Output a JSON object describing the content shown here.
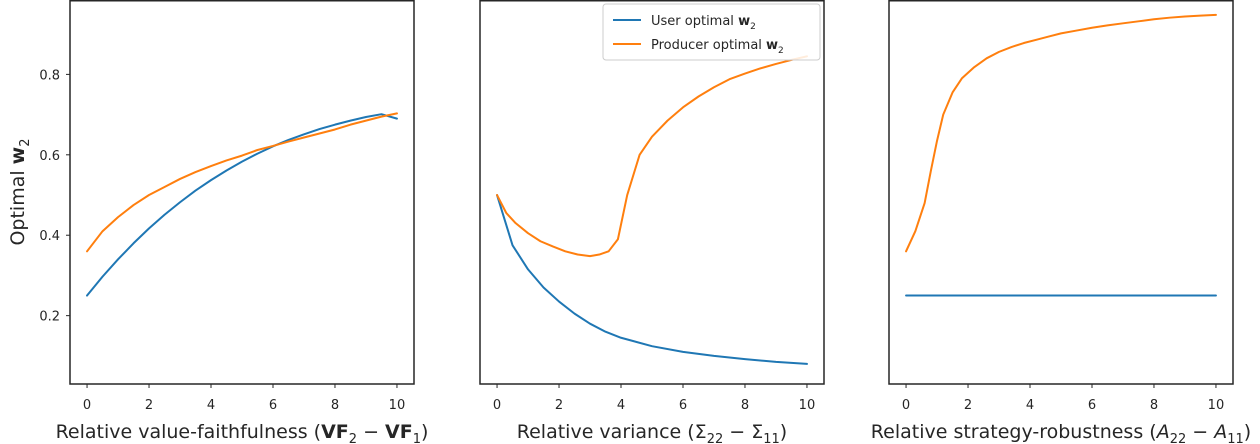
{
  "chart_data": [
    {
      "type": "line",
      "title": "",
      "xlabel": "Relative value-faithfulness (VF₂ − VF₁)",
      "xlabel_parts": [
        {
          "t": "Relative value-faithfulness (",
          "bold": false
        },
        {
          "t": "VF",
          "bold": true
        },
        {
          "t": "2",
          "sub": true
        },
        {
          "t": " − ",
          "bold": false
        },
        {
          "t": "VF",
          "bold": true
        },
        {
          "t": "1",
          "sub": true
        },
        {
          "t": ")",
          "bold": false
        }
      ],
      "ylabel": "Optimal w₂",
      "ylabel_parts": [
        {
          "t": "Optimal ",
          "bold": false
        },
        {
          "t": "w",
          "bold": true
        },
        {
          "t": "2",
          "sub": true
        }
      ],
      "xlim": [
        -0.55,
        10.55
      ],
      "ylim": [
        0.03,
        0.985
      ],
      "xticks": [
        0,
        2,
        4,
        6,
        8,
        10
      ],
      "yticks": [
        0.2,
        0.4,
        0.6,
        0.8
      ],
      "show_yticks": true,
      "grid": false,
      "series": [
        {
          "name": "User optimal w₂",
          "color": "#1f77b4",
          "x": [
            0,
            0.5,
            1,
            1.5,
            2,
            2.5,
            3,
            3.5,
            4,
            4.5,
            5,
            5.5,
            6,
            6.5,
            7,
            7.5,
            8,
            8.5,
            9,
            9.5,
            10
          ],
          "y": [
            0.25,
            0.297,
            0.34,
            0.38,
            0.417,
            0.451,
            0.482,
            0.511,
            0.537,
            0.561,
            0.583,
            0.603,
            0.621,
            0.637,
            0.651,
            0.664,
            0.675,
            0.685,
            0.694,
            0.701,
            0.69
          ]
        },
        {
          "name": "Producer optimal w₂",
          "color": "#ff7f0e",
          "x": [
            0,
            0.5,
            1,
            1.5,
            2,
            2.5,
            3,
            3.5,
            4,
            4.5,
            5,
            5.5,
            6,
            6.5,
            7,
            7.5,
            8,
            8.5,
            9,
            9.5,
            10
          ],
          "y": [
            0.36,
            0.41,
            0.445,
            0.475,
            0.5,
            0.52,
            0.54,
            0.557,
            0.572,
            0.586,
            0.598,
            0.612,
            0.622,
            0.633,
            0.643,
            0.653,
            0.663,
            0.675,
            0.685,
            0.695,
            0.703
          ]
        }
      ]
    },
    {
      "type": "line",
      "title": "",
      "xlabel": "Relative variance (Σ₂₂ − Σ₁₁)",
      "xlabel_parts": [
        {
          "t": "Relative variance (Σ",
          "bold": false
        },
        {
          "t": "22",
          "sub": true
        },
        {
          "t": " − Σ",
          "bold": false
        },
        {
          "t": "11",
          "sub": true
        },
        {
          "t": ")",
          "bold": false
        }
      ],
      "ylabel": "",
      "xlim": [
        -0.55,
        10.55
      ],
      "ylim": [
        0.03,
        0.985
      ],
      "xticks": [
        0,
        2,
        4,
        6,
        8,
        10
      ],
      "yticks": [],
      "show_yticks": false,
      "grid": false,
      "legend": {
        "position": "top-right",
        "entries": [
          {
            "color": "#1f77b4",
            "parts": [
              {
                "t": "User optimal ",
                "bold": false
              },
              {
                "t": "w",
                "bold": true
              },
              {
                "t": "2",
                "sub": true
              }
            ]
          },
          {
            "color": "#ff7f0e",
            "parts": [
              {
                "t": "Producer optimal ",
                "bold": false
              },
              {
                "t": "w",
                "bold": true
              },
              {
                "t": "2",
                "sub": true
              }
            ]
          }
        ]
      },
      "series": [
        {
          "name": "User optimal w₂",
          "color": "#1f77b4",
          "x": [
            0,
            0.5,
            1,
            1.5,
            2,
            2.5,
            3,
            3.5,
            4,
            5,
            6,
            7,
            8,
            9,
            10
          ],
          "y": [
            0.5,
            0.375,
            0.315,
            0.27,
            0.235,
            0.205,
            0.18,
            0.16,
            0.145,
            0.124,
            0.11,
            0.1,
            0.092,
            0.085,
            0.08
          ]
        },
        {
          "name": "Producer optimal w₂",
          "color": "#ff7f0e",
          "x": [
            0,
            0.3,
            0.6,
            1,
            1.4,
            1.8,
            2.2,
            2.6,
            3,
            3.3,
            3.6,
            3.9,
            4.2,
            4.6,
            5,
            5.5,
            6,
            6.5,
            7,
            7.5,
            8,
            8.5,
            9,
            9.5,
            10
          ],
          "y": [
            0.5,
            0.455,
            0.43,
            0.405,
            0.385,
            0.372,
            0.36,
            0.352,
            0.348,
            0.352,
            0.36,
            0.39,
            0.5,
            0.6,
            0.645,
            0.685,
            0.718,
            0.745,
            0.768,
            0.788,
            0.802,
            0.815,
            0.826,
            0.836,
            0.845
          ]
        }
      ]
    },
    {
      "type": "line",
      "title": "",
      "xlabel": "Relative strategy-robustness (A₂₂ − A₁₁)",
      "xlabel_parts": [
        {
          "t": "Relative strategy-robustness (",
          "bold": false
        },
        {
          "t": "A",
          "italic": true
        },
        {
          "t": "22",
          "sub": true
        },
        {
          "t": " − ",
          "bold": false
        },
        {
          "t": "A",
          "italic": true
        },
        {
          "t": "11",
          "sub": true
        },
        {
          "t": ")",
          "bold": false
        }
      ],
      "ylabel": "",
      "xlim": [
        -0.55,
        10.55
      ],
      "ylim": [
        0.03,
        0.985
      ],
      "xticks": [
        0,
        2,
        4,
        6,
        8,
        10
      ],
      "yticks": [],
      "show_yticks": false,
      "grid": false,
      "series": [
        {
          "name": "User optimal w₂",
          "color": "#1f77b4",
          "x": [
            0,
            10
          ],
          "y": [
            0.25,
            0.25
          ]
        },
        {
          "name": "Producer optimal w₂",
          "color": "#ff7f0e",
          "x": [
            0,
            0.3,
            0.6,
            0.8,
            1,
            1.2,
            1.5,
            1.8,
            2.2,
            2.6,
            3,
            3.4,
            3.8,
            4.2,
            4.6,
            5,
            5.5,
            6,
            6.5,
            7,
            7.5,
            8,
            8.5,
            9,
            9.5,
            10
          ],
          "y": [
            0.36,
            0.41,
            0.48,
            0.56,
            0.635,
            0.7,
            0.755,
            0.79,
            0.818,
            0.84,
            0.856,
            0.868,
            0.878,
            0.886,
            0.894,
            0.902,
            0.909,
            0.916,
            0.922,
            0.927,
            0.932,
            0.937,
            0.941,
            0.944,
            0.946,
            0.948
          ]
        }
      ]
    }
  ]
}
